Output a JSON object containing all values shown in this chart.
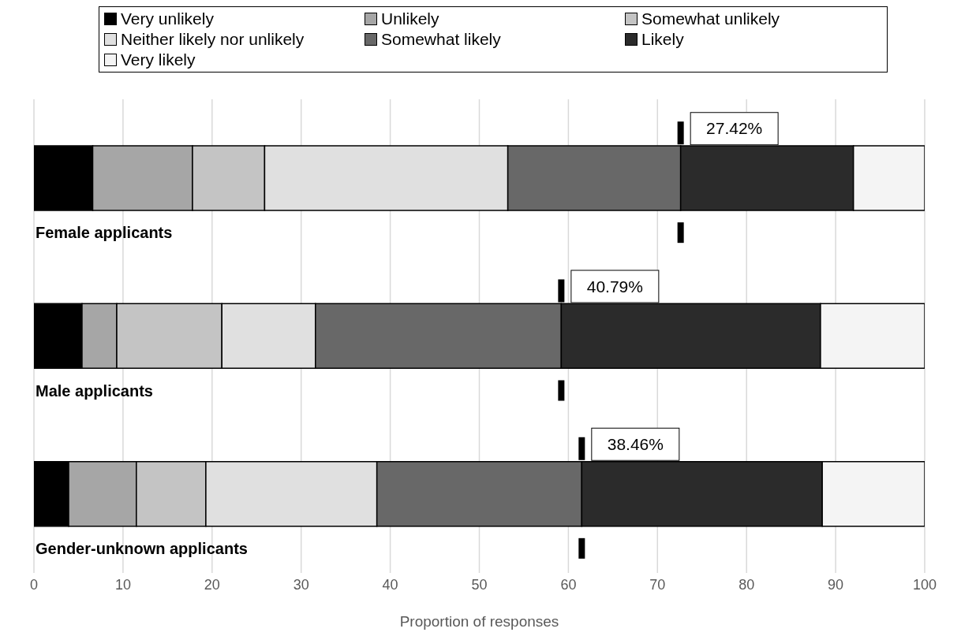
{
  "chart_data": {
    "type": "bar",
    "orientation": "horizontal",
    "stacked": true,
    "xlabel": "Proportion of responses",
    "categories": [
      "Female applicants",
      "Male applicants",
      "Gender-unknown applicants"
    ],
    "series": [
      {
        "name": "Very unlikely",
        "color": "#000000",
        "values": [
          6.6,
          5.4,
          3.9
        ]
      },
      {
        "name": "Unlikely",
        "color": "#a6a6a6",
        "values": [
          11.2,
          3.9,
          7.6
        ]
      },
      {
        "name": "Somewhat unlikely",
        "color": "#c4c4c4",
        "values": [
          8.1,
          11.8,
          7.8
        ]
      },
      {
        "name": "Neither likely nor unlikely",
        "color": "#e0e0e0",
        "values": [
          27.3,
          10.5,
          19.2
        ]
      },
      {
        "name": "Somewhat likely",
        "color": "#686868",
        "values": [
          19.4,
          27.6,
          23.0
        ]
      },
      {
        "name": "Likely",
        "color": "#2b2b2b",
        "values": [
          19.4,
          29.1,
          27.0
        ]
      },
      {
        "name": "Very likely",
        "color": "#f4f4f4",
        "values": [
          8.0,
          11.7,
          11.5
        ]
      },
      {
        "type": "scatter",
        "color": "#000000",
        "values": [
          72.6,
          59.2,
          61.5
        ]
      }
    ],
    "xlim": [
      0,
      100
    ],
    "xticks": [
      0,
      10,
      20,
      30,
      40,
      50,
      60,
      70,
      80,
      90,
      100
    ],
    "grid": "x",
    "legend": "top",
    "annotations": [
      "27.42%",
      "40.79%",
      "38.46%"
    ]
  }
}
